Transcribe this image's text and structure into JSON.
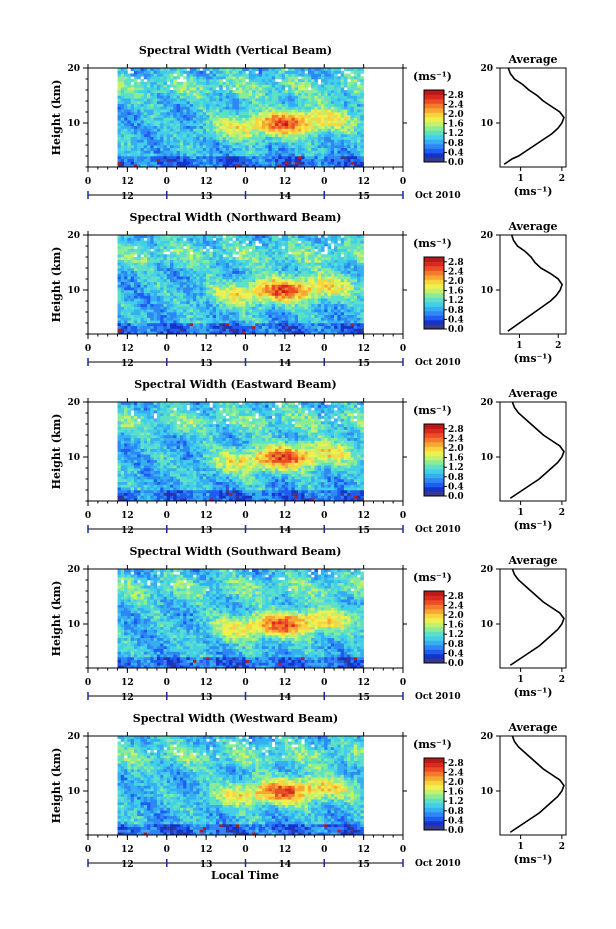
{
  "figure": {
    "month_label": "Oct 2010",
    "xlabel": "Local Time",
    "ylabel": "Height (km)",
    "avg_title": "Average",
    "unit_label": "(ms⁻¹)"
  },
  "colors": {
    "scale": [
      "#3a3a8a",
      "#1533c8",
      "#1f5cf0",
      "#2f86f5",
      "#35aef2",
      "#42cfe8",
      "#5ee0c8",
      "#8cec96",
      "#c4f06c",
      "#eef052",
      "#fad43e",
      "#f8a634",
      "#f47a2c",
      "#ec4c26",
      "#d82a20",
      "#b81a18"
    ],
    "missing": "#ffffff"
  },
  "chart_data": [
    {
      "type": "heatmap",
      "title": "Spectral Width (Vertical Beam)",
      "ylabel": "Height (km)",
      "ylim": [
        2,
        20
      ],
      "yticks": [
        10,
        20
      ],
      "xlim": [
        0,
        96
      ],
      "xticks": [
        0,
        12,
        0,
        12,
        0,
        12,
        0,
        12,
        0
      ],
      "day_labels": [
        "12",
        "13",
        "14",
        "15"
      ],
      "data_window": [
        9,
        84
      ],
      "colorbar": {
        "label": "(ms⁻¹)",
        "ticks": [
          "0.0",
          "0.4",
          "0.8",
          "1.2",
          "1.6",
          "2.0",
          "2.4",
          "2.8"
        ],
        "range": [
          0,
          3.0
        ]
      },
      "profile": {
        "title": "Average",
        "xlabel": "(ms⁻¹)",
        "xticks": [
          "1",
          "2"
        ],
        "xlim": [
          0.5,
          2.1
        ],
        "points": [
          [
            2.5,
            0.6
          ],
          [
            3,
            0.7
          ],
          [
            3.5,
            0.8
          ],
          [
            4,
            0.95
          ],
          [
            5,
            1.15
          ],
          [
            6,
            1.35
          ],
          [
            7,
            1.55
          ],
          [
            8,
            1.75
          ],
          [
            9,
            1.9
          ],
          [
            10,
            2.0
          ],
          [
            11,
            2.05
          ],
          [
            12,
            1.95
          ],
          [
            13,
            1.75
          ],
          [
            14,
            1.55
          ],
          [
            15,
            1.4
          ],
          [
            16,
            1.2
          ],
          [
            17,
            1.05
          ],
          [
            18,
            0.85
          ],
          [
            19,
            0.75
          ],
          [
            20,
            0.7
          ]
        ]
      }
    },
    {
      "type": "heatmap",
      "title": "Spectral Width (Northward Beam)",
      "ylabel": "Height (km)",
      "ylim": [
        2,
        20
      ],
      "yticks": [
        10,
        20
      ],
      "xlim": [
        0,
        96
      ],
      "xticks": [
        0,
        12,
        0,
        12,
        0,
        12,
        0,
        12,
        0
      ],
      "day_labels": [
        "12",
        "13",
        "14",
        "15"
      ],
      "data_window": [
        9,
        84
      ],
      "colorbar": {
        "label": "(ms⁻¹)",
        "ticks": [
          "0.0",
          "0.4",
          "0.8",
          "1.2",
          "1.6",
          "2.0",
          "2.4",
          "2.8"
        ],
        "range": [
          0,
          3.0
        ]
      },
      "profile": {
        "title": "Average",
        "xlabel": "(ms⁻¹)",
        "xticks": [
          "1",
          "2"
        ],
        "xlim": [
          0.5,
          2.2
        ],
        "points": [
          [
            2.5,
            0.7
          ],
          [
            3,
            0.8
          ],
          [
            3.5,
            0.9
          ],
          [
            4,
            1.0
          ],
          [
            5,
            1.2
          ],
          [
            6,
            1.4
          ],
          [
            7,
            1.6
          ],
          [
            8,
            1.8
          ],
          [
            9,
            1.95
          ],
          [
            10,
            2.05
          ],
          [
            11,
            2.1
          ],
          [
            12,
            2.0
          ],
          [
            13,
            1.8
          ],
          [
            14,
            1.55
          ],
          [
            15,
            1.4
          ],
          [
            16,
            1.3
          ],
          [
            17,
            1.15
          ],
          [
            18,
            0.95
          ],
          [
            19,
            0.85
          ],
          [
            20,
            0.8
          ]
        ]
      }
    },
    {
      "type": "heatmap",
      "title": "Spectral Width (Eastward Beam)",
      "ylabel": "Height (km)",
      "ylim": [
        2,
        20
      ],
      "yticks": [
        10,
        20
      ],
      "xlim": [
        0,
        96
      ],
      "xticks": [
        0,
        12,
        0,
        12,
        0,
        12,
        0,
        12,
        0
      ],
      "day_labels": [
        "12",
        "13",
        "14",
        "15"
      ],
      "data_window": [
        9,
        84
      ],
      "colorbar": {
        "label": "(ms⁻¹)",
        "ticks": [
          "0.0",
          "0.4",
          "0.8",
          "1.2",
          "1.6",
          "2.0",
          "2.4",
          "2.8"
        ],
        "range": [
          0,
          3.0
        ]
      },
      "profile": {
        "title": "Average",
        "xlabel": "(ms⁻¹)",
        "xticks": [
          "1",
          "2"
        ],
        "xlim": [
          0.5,
          2.1
        ],
        "points": [
          [
            2.5,
            0.75
          ],
          [
            3,
            0.85
          ],
          [
            3.5,
            0.95
          ],
          [
            4,
            1.05
          ],
          [
            5,
            1.25
          ],
          [
            6,
            1.45
          ],
          [
            7,
            1.6
          ],
          [
            8,
            1.75
          ],
          [
            9,
            1.9
          ],
          [
            10,
            2.0
          ],
          [
            11,
            2.05
          ],
          [
            12,
            1.95
          ],
          [
            13,
            1.75
          ],
          [
            14,
            1.55
          ],
          [
            15,
            1.4
          ],
          [
            16,
            1.25
          ],
          [
            17,
            1.1
          ],
          [
            18,
            0.95
          ],
          [
            19,
            0.85
          ],
          [
            20,
            0.8
          ]
        ]
      }
    },
    {
      "type": "heatmap",
      "title": "Spectral Width (Southward Beam)",
      "ylabel": "Height (km)",
      "ylim": [
        2,
        20
      ],
      "yticks": [
        10,
        20
      ],
      "xlim": [
        0,
        96
      ],
      "xticks": [
        0,
        12,
        0,
        12,
        0,
        12,
        0,
        12,
        0
      ],
      "day_labels": [
        "12",
        "13",
        "14",
        "15"
      ],
      "data_window": [
        9,
        84
      ],
      "colorbar": {
        "label": "(ms⁻¹)",
        "ticks": [
          "0.0",
          "0.4",
          "0.8",
          "1.2",
          "1.6",
          "2.0",
          "2.4",
          "2.8"
        ],
        "range": [
          0,
          3.0
        ]
      },
      "profile": {
        "title": "Average",
        "xlabel": "(ms⁻¹)",
        "xticks": [
          "1",
          "2"
        ],
        "xlim": [
          0.5,
          2.1
        ],
        "points": [
          [
            2.5,
            0.75
          ],
          [
            3,
            0.85
          ],
          [
            3.5,
            0.95
          ],
          [
            4,
            1.05
          ],
          [
            5,
            1.25
          ],
          [
            6,
            1.45
          ],
          [
            7,
            1.6
          ],
          [
            8,
            1.75
          ],
          [
            9,
            1.9
          ],
          [
            10,
            2.0
          ],
          [
            11,
            2.05
          ],
          [
            12,
            1.95
          ],
          [
            13,
            1.75
          ],
          [
            14,
            1.55
          ],
          [
            15,
            1.4
          ],
          [
            16,
            1.25
          ],
          [
            17,
            1.1
          ],
          [
            18,
            0.95
          ],
          [
            19,
            0.85
          ],
          [
            20,
            0.8
          ]
        ]
      }
    },
    {
      "type": "heatmap",
      "title": "Spectral Width (Westward Beam)",
      "ylabel": "Height (km)",
      "ylim": [
        2,
        20
      ],
      "yticks": [
        10,
        20
      ],
      "xlim": [
        0,
        96
      ],
      "xticks": [
        0,
        12,
        0,
        12,
        0,
        12,
        0,
        12,
        0
      ],
      "day_labels": [
        "12",
        "13",
        "14",
        "15"
      ],
      "data_window": [
        9,
        84
      ],
      "colorbar": {
        "label": "(ms⁻¹)",
        "ticks": [
          "0.0",
          "0.4",
          "0.8",
          "1.2",
          "1.6",
          "2.0",
          "2.4",
          "2.8"
        ],
        "range": [
          0,
          3.0
        ]
      },
      "profile": {
        "title": "Average",
        "xlabel": "(ms⁻¹)",
        "xticks": [
          "1",
          "2"
        ],
        "xlim": [
          0.5,
          2.1
        ],
        "points": [
          [
            2.5,
            0.75
          ],
          [
            3,
            0.85
          ],
          [
            3.5,
            0.95
          ],
          [
            4,
            1.05
          ],
          [
            5,
            1.25
          ],
          [
            6,
            1.45
          ],
          [
            7,
            1.6
          ],
          [
            8,
            1.75
          ],
          [
            9,
            1.9
          ],
          [
            10,
            2.0
          ],
          [
            11,
            2.05
          ],
          [
            12,
            1.95
          ],
          [
            13,
            1.75
          ],
          [
            14,
            1.55
          ],
          [
            15,
            1.4
          ],
          [
            16,
            1.25
          ],
          [
            17,
            1.1
          ],
          [
            18,
            0.95
          ],
          [
            19,
            0.85
          ],
          [
            20,
            0.8
          ]
        ]
      }
    }
  ]
}
